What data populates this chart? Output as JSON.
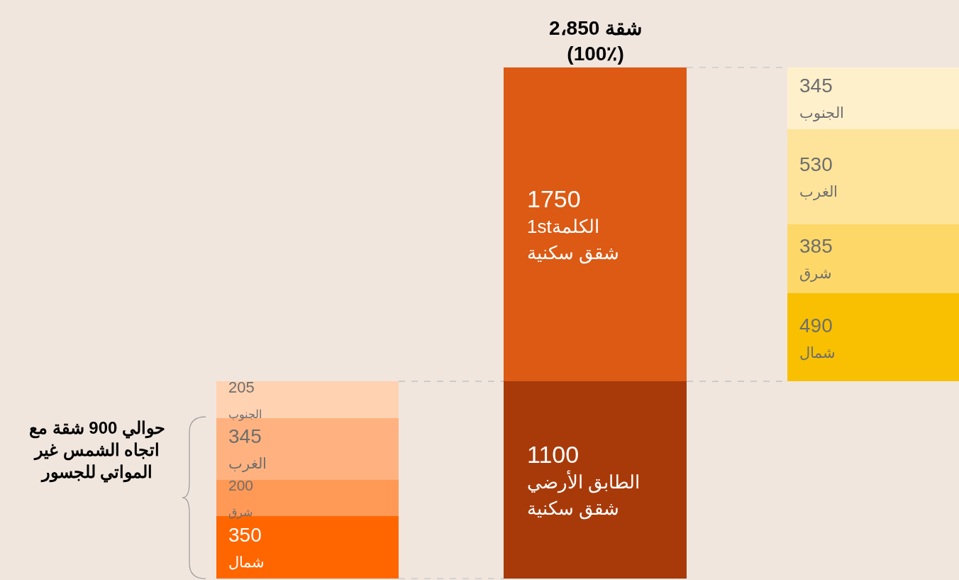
{
  "chart_data": [
    {
      "type": "bar",
      "stacked": true,
      "categories": [
        null
      ],
      "series": [
        {
          "values": [
            350
          ],
          "colors": [
            "#ff6600"
          ],
          "value_labels": [
            "350\nشمال"
          ]
        },
        {
          "values": [
            200
          ],
          "colors": [
            "#ff9955"
          ],
          "value_labels": [
            "200\nشرق"
          ]
        },
        {
          "values": [
            345
          ],
          "colors": [
            "#ffb27f"
          ],
          "value_labels": [
            "345\nالغرب"
          ]
        },
        {
          "values": [
            205
          ],
          "colors": [
            "#ffd2b2"
          ],
          "value_labels": [
            "205\nالجنوب"
          ]
        }
      ],
      "annotations": [
        "حوالي 900 شقة مع\nاتجاه الشمس غير\nالمواتي للجسور"
      ],
      "tick_labels": false
    },
    {
      "type": "bar",
      "stacked": true,
      "categories": [
        null
      ],
      "series": [
        {
          "values": [
            1100
          ],
          "colors": [
            "#a83a0a"
          ],
          "value_labels": [
            "1100\nالطابق الأرضي\nشقق سكنية"
          ]
        },
        {
          "values": [
            1750
          ],
          "colors": [
            "#dc5a14"
          ],
          "value_labels": [
            "1750\n1stالكلمة\nشقق سكنية"
          ]
        }
      ],
      "totals": [
        "2،850 شقة\n(100٪)"
      ],
      "tick_labels": false
    },
    {
      "type": "bar",
      "stacked": true,
      "categories": [
        null
      ],
      "series": [
        {
          "values": [
            490
          ],
          "colors": [
            "#f8c000"
          ],
          "value_labels": [
            "490\nشمال"
          ]
        },
        {
          "values": [
            385
          ],
          "colors": [
            "#fdd868"
          ],
          "value_labels": [
            "385\nشرق"
          ]
        },
        {
          "values": [
            530
          ],
          "colors": [
            "#fee49a"
          ],
          "value_labels": [
            "530\nالغرب"
          ]
        },
        {
          "values": [
            345
          ],
          "colors": [
            "#fff0cc"
          ],
          "value_labels": [
            "345\nالجنوب"
          ]
        }
      ],
      "tick_labels": false
    }
  ]
}
